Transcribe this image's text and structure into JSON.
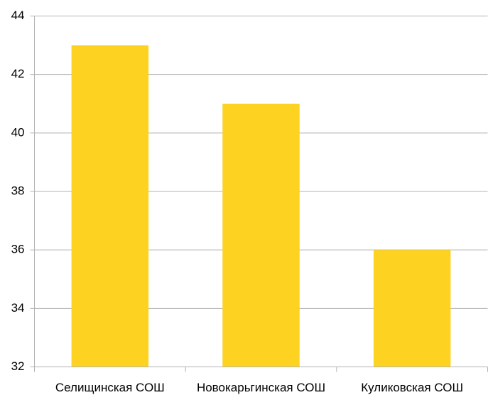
{
  "chart_data": {
    "type": "bar",
    "categories": [
      "Селищинская СОШ",
      "Новокарьгинская СОШ",
      "Куликовская СОШ"
    ],
    "values": [
      43,
      41,
      36
    ],
    "color": "#fdd221",
    "ylim": [
      32,
      44
    ],
    "yticks": [
      32,
      34,
      36,
      38,
      40,
      42,
      44
    ],
    "grid": true
  }
}
